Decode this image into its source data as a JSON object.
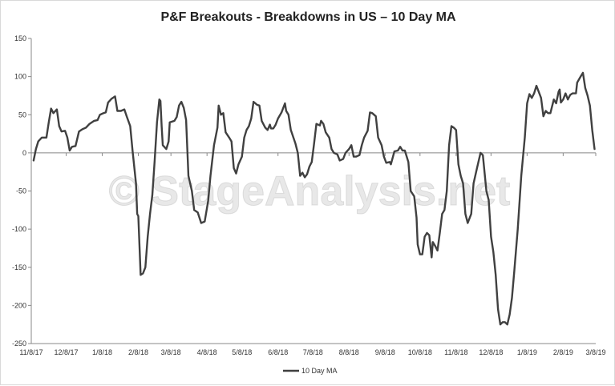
{
  "chart_data": {
    "type": "line",
    "title": "P&F Breakouts - Breakdowns in US – 10 Day MA",
    "xlabel": "",
    "ylabel": "",
    "ylim": [
      -250,
      150
    ],
    "y_ticks": [
      150,
      100,
      50,
      0,
      -50,
      -100,
      -150,
      -200,
      -250
    ],
    "x_range": [
      "2017-11-08",
      "2019-03-08"
    ],
    "x_ticks": [
      {
        "label": "11/8/17",
        "date": "2017-11-08"
      },
      {
        "label": "12/8/17",
        "date": "2017-12-08"
      },
      {
        "label": "1/8/18",
        "date": "2018-01-08"
      },
      {
        "label": "2/8/18",
        "date": "2018-02-08"
      },
      {
        "label": "3/8/18",
        "date": "2018-03-08"
      },
      {
        "label": "4/8/18",
        "date": "2018-04-08"
      },
      {
        "label": "5/8/18",
        "date": "2018-05-08"
      },
      {
        "label": "6/8/18",
        "date": "2018-06-08"
      },
      {
        "label": "7/8/18",
        "date": "2018-07-08"
      },
      {
        "label": "8/8/18",
        "date": "2018-08-08"
      },
      {
        "label": "9/8/18",
        "date": "2018-09-08"
      },
      {
        "label": "10/8/18",
        "date": "2018-10-08"
      },
      {
        "label": "11/8/18",
        "date": "2018-11-08"
      },
      {
        "label": "12/8/18",
        "date": "2018-12-08"
      },
      {
        "label": "1/8/19",
        "date": "2019-01-08"
      },
      {
        "label": "2/8/19",
        "date": "2019-02-08"
      },
      {
        "label": "3/8/19",
        "date": "2019-03-08"
      }
    ],
    "grid": false,
    "legend_position": "bottom",
    "watermark": "© StageAnalysis.net",
    "series": [
      {
        "name": "10 Day MA",
        "color": "#404040",
        "points": [
          [
            "2017-11-10",
            -10
          ],
          [
            "2017-11-12",
            5
          ],
          [
            "2017-11-14",
            15
          ],
          [
            "2017-11-17",
            20
          ],
          [
            "2017-11-21",
            20
          ],
          [
            "2017-11-23",
            40
          ],
          [
            "2017-11-25",
            58
          ],
          [
            "2017-11-27",
            52
          ],
          [
            "2017-11-30",
            57
          ],
          [
            "2017-12-02",
            35
          ],
          [
            "2017-12-04",
            28
          ],
          [
            "2017-12-07",
            29
          ],
          [
            "2017-12-09",
            20
          ],
          [
            "2017-12-11",
            3
          ],
          [
            "2017-12-13",
            8
          ],
          [
            "2017-12-16",
            9
          ],
          [
            "2017-12-19",
            28
          ],
          [
            "2017-12-22",
            31
          ],
          [
            "2017-12-25",
            33
          ],
          [
            "2017-12-28",
            38
          ],
          [
            "2018-01-01",
            42
          ],
          [
            "2018-01-04",
            43
          ],
          [
            "2018-01-06",
            50
          ],
          [
            "2018-01-09",
            52
          ],
          [
            "2018-01-11",
            53
          ],
          [
            "2018-01-13",
            66
          ],
          [
            "2018-01-16",
            71
          ],
          [
            "2018-01-19",
            74
          ],
          [
            "2018-01-21",
            55
          ],
          [
            "2018-01-24",
            55
          ],
          [
            "2018-01-27",
            57
          ],
          [
            "2018-01-29",
            48
          ],
          [
            "2018-02-01",
            35
          ],
          [
            "2018-02-03",
            3
          ],
          [
            "2018-02-06",
            -40
          ],
          [
            "2018-02-07",
            -80
          ],
          [
            "2018-02-08",
            -83
          ],
          [
            "2018-02-10",
            -160
          ],
          [
            "2018-02-12",
            -158
          ],
          [
            "2018-02-14",
            -150
          ],
          [
            "2018-02-16",
            -110
          ],
          [
            "2018-02-18",
            -80
          ],
          [
            "2018-02-20",
            -55
          ],
          [
            "2018-02-22",
            -10
          ],
          [
            "2018-02-24",
            40
          ],
          [
            "2018-02-26",
            70
          ],
          [
            "2018-02-27",
            68
          ],
          [
            "2018-02-28",
            35
          ],
          [
            "2018-03-01",
            10
          ],
          [
            "2018-03-04",
            5
          ],
          [
            "2018-03-06",
            15
          ],
          [
            "2018-03-07",
            40
          ],
          [
            "2018-03-11",
            42
          ],
          [
            "2018-03-13",
            47
          ],
          [
            "2018-03-15",
            62
          ],
          [
            "2018-03-17",
            67
          ],
          [
            "2018-03-19",
            59
          ],
          [
            "2018-03-21",
            43
          ],
          [
            "2018-03-23",
            -30
          ],
          [
            "2018-03-26",
            -50
          ],
          [
            "2018-03-28",
            -75
          ],
          [
            "2018-03-31",
            -78
          ],
          [
            "2018-04-03",
            -92
          ],
          [
            "2018-04-06",
            -90
          ],
          [
            "2018-04-09",
            -63
          ],
          [
            "2018-04-11",
            -30
          ],
          [
            "2018-04-14",
            10
          ],
          [
            "2018-04-17",
            33
          ],
          [
            "2018-04-18",
            62
          ],
          [
            "2018-04-20",
            50
          ],
          [
            "2018-04-22",
            52
          ],
          [
            "2018-04-24",
            27
          ],
          [
            "2018-04-27",
            20
          ],
          [
            "2018-04-29",
            15
          ],
          [
            "2018-05-01",
            -20
          ],
          [
            "2018-05-03",
            -27
          ],
          [
            "2018-05-05",
            -15
          ],
          [
            "2018-05-08",
            -5
          ],
          [
            "2018-05-10",
            20
          ],
          [
            "2018-05-12",
            30
          ],
          [
            "2018-05-14",
            35
          ],
          [
            "2018-05-16",
            45
          ],
          [
            "2018-05-18",
            67
          ],
          [
            "2018-05-21",
            63
          ],
          [
            "2018-05-23",
            62
          ],
          [
            "2018-05-25",
            42
          ],
          [
            "2018-05-28",
            33
          ],
          [
            "2018-05-30",
            30
          ],
          [
            "2018-06-01",
            37
          ],
          [
            "2018-06-02",
            32
          ],
          [
            "2018-06-04",
            32
          ],
          [
            "2018-06-06",
            37
          ],
          [
            "2018-06-08",
            45
          ],
          [
            "2018-06-11",
            53
          ],
          [
            "2018-06-14",
            65
          ],
          [
            "2018-06-15",
            55
          ],
          [
            "2018-06-17",
            50
          ],
          [
            "2018-06-19",
            30
          ],
          [
            "2018-06-23",
            12
          ],
          [
            "2018-06-25",
            0
          ],
          [
            "2018-06-27",
            -30
          ],
          [
            "2018-06-29",
            -26
          ],
          [
            "2018-07-01",
            -32
          ],
          [
            "2018-07-03",
            -28
          ],
          [
            "2018-07-05",
            -18
          ],
          [
            "2018-07-07",
            -12
          ],
          [
            "2018-07-09",
            12
          ],
          [
            "2018-07-11",
            38
          ],
          [
            "2018-07-14",
            36
          ],
          [
            "2018-07-15",
            42
          ],
          [
            "2018-07-17",
            38
          ],
          [
            "2018-07-19",
            27
          ],
          [
            "2018-07-22",
            20
          ],
          [
            "2018-07-24",
            5
          ],
          [
            "2018-07-26",
            0
          ],
          [
            "2018-07-29",
            -2
          ],
          [
            "2018-07-31",
            -10
          ],
          [
            "2018-08-03",
            -8
          ],
          [
            "2018-08-05",
            0
          ],
          [
            "2018-08-08",
            5
          ],
          [
            "2018-08-10",
            10
          ],
          [
            "2018-08-12",
            -5
          ],
          [
            "2018-08-14",
            -5
          ],
          [
            "2018-08-17",
            -3
          ],
          [
            "2018-08-19",
            10
          ],
          [
            "2018-08-21",
            20
          ],
          [
            "2018-08-24",
            29
          ],
          [
            "2018-08-26",
            53
          ],
          [
            "2018-08-28",
            52
          ],
          [
            "2018-08-31",
            48
          ],
          [
            "2018-09-02",
            20
          ],
          [
            "2018-09-05",
            10
          ],
          [
            "2018-09-07",
            -5
          ],
          [
            "2018-09-09",
            -13
          ],
          [
            "2018-09-12",
            -12
          ],
          [
            "2018-09-13",
            -15
          ],
          [
            "2018-09-16",
            2
          ],
          [
            "2018-09-19",
            3
          ],
          [
            "2018-09-21",
            8
          ],
          [
            "2018-09-23",
            3
          ],
          [
            "2018-09-25",
            3
          ],
          [
            "2018-09-28",
            -12
          ],
          [
            "2018-09-30",
            -50
          ],
          [
            "2018-10-03",
            -57
          ],
          [
            "2018-10-05",
            -85
          ],
          [
            "2018-10-06",
            -120
          ],
          [
            "2018-10-08",
            -133
          ],
          [
            "2018-10-10",
            -133
          ],
          [
            "2018-10-12",
            -110
          ],
          [
            "2018-10-14",
            -105
          ],
          [
            "2018-10-16",
            -108
          ],
          [
            "2018-10-18",
            -137
          ],
          [
            "2018-10-19",
            -117
          ],
          [
            "2018-10-21",
            -122
          ],
          [
            "2018-10-23",
            -128
          ],
          [
            "2018-10-25",
            -105
          ],
          [
            "2018-10-27",
            -80
          ],
          [
            "2018-10-29",
            -75
          ],
          [
            "2018-10-31",
            -50
          ],
          [
            "2018-11-02",
            10
          ],
          [
            "2018-11-04",
            35
          ],
          [
            "2018-11-06",
            33
          ],
          [
            "2018-11-08",
            30
          ],
          [
            "2018-11-10",
            -15
          ],
          [
            "2018-11-12",
            -30
          ],
          [
            "2018-11-14",
            -40
          ],
          [
            "2018-11-16",
            -80
          ],
          [
            "2018-11-18",
            -92
          ],
          [
            "2018-11-21",
            -80
          ],
          [
            "2018-11-23",
            -40
          ],
          [
            "2018-11-26",
            -20
          ],
          [
            "2018-11-29",
            0
          ],
          [
            "2018-12-01",
            -3
          ],
          [
            "2018-12-04",
            -50
          ],
          [
            "2018-12-06",
            -62
          ],
          [
            "2018-12-08",
            -110
          ],
          [
            "2018-12-10",
            -130
          ],
          [
            "2018-12-12",
            -160
          ],
          [
            "2018-12-14",
            -205
          ],
          [
            "2018-12-16",
            -225
          ],
          [
            "2018-12-18",
            -222
          ],
          [
            "2018-12-20",
            -222
          ],
          [
            "2018-12-22",
            -225
          ],
          [
            "2018-12-24",
            -212
          ],
          [
            "2018-12-26",
            -190
          ],
          [
            "2018-12-28",
            -155
          ],
          [
            "2018-12-31",
            -100
          ],
          [
            "2019-01-03",
            -30
          ],
          [
            "2019-01-06",
            20
          ],
          [
            "2019-01-08",
            65
          ],
          [
            "2019-01-10",
            77
          ],
          [
            "2019-01-12",
            72
          ],
          [
            "2019-01-14",
            78
          ],
          [
            "2019-01-16",
            88
          ],
          [
            "2019-01-18",
            80
          ],
          [
            "2019-01-20",
            72
          ],
          [
            "2019-01-22",
            48
          ],
          [
            "2019-01-24",
            55
          ],
          [
            "2019-01-26",
            52
          ],
          [
            "2019-01-28",
            52
          ],
          [
            "2019-01-31",
            70
          ],
          [
            "2019-02-02",
            65
          ],
          [
            "2019-02-04",
            80
          ],
          [
            "2019-02-05",
            83
          ],
          [
            "2019-02-06",
            66
          ],
          [
            "2019-02-08",
            70
          ],
          [
            "2019-02-10",
            78
          ],
          [
            "2019-02-12",
            70
          ],
          [
            "2019-02-14",
            76
          ],
          [
            "2019-02-16",
            78
          ],
          [
            "2019-02-19",
            78
          ],
          [
            "2019-02-20",
            92
          ],
          [
            "2019-02-23",
            100
          ],
          [
            "2019-02-25",
            105
          ],
          [
            "2019-02-27",
            85
          ],
          [
            "2019-03-01",
            75
          ],
          [
            "2019-03-03",
            62
          ],
          [
            "2019-03-05",
            30
          ],
          [
            "2019-03-07",
            5
          ]
        ]
      }
    ]
  }
}
